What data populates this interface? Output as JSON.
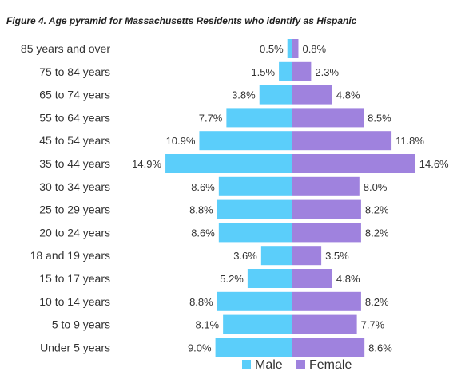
{
  "chart_data": {
    "type": "bar",
    "orientation": "horizontal-diverging",
    "title": "Figure 4. Age pyramid for Massachusetts Residents who identify as Hispanic",
    "categories": [
      "85 years and over",
      "75 to 84 years",
      "65 to 74 years",
      "55 to 64 years",
      "45 to 54 years",
      "35 to 44 years",
      "30 to 34 years",
      "25 to 29 years",
      "20 to 24 years",
      "18 and 19 years",
      "15 to 17 years",
      "10 to 14 years",
      "5 to 9 years",
      "Under 5 years"
    ],
    "series": [
      {
        "name": "Male",
        "color": "#5bcefa",
        "values": [
          0.5,
          1.5,
          3.8,
          7.7,
          10.9,
          14.9,
          8.6,
          8.8,
          8.6,
          3.6,
          5.2,
          8.8,
          8.1,
          9.0
        ],
        "labels": [
          "0.5%",
          "1.5%",
          "3.8%",
          "7.7%",
          "10.9%",
          "14.9%",
          "8.6%",
          "8.8%",
          "8.6%",
          "3.6%",
          "5.2%",
          "8.8%",
          "8.1%",
          "9.0%"
        ]
      },
      {
        "name": "Female",
        "color": "#9f82de",
        "values": [
          0.8,
          2.3,
          4.8,
          8.5,
          11.8,
          14.6,
          8.0,
          8.2,
          8.2,
          3.5,
          4.8,
          8.2,
          7.7,
          8.6
        ],
        "labels": [
          "0.8%",
          "2.3%",
          "4.8%",
          "8.5%",
          "11.8%",
          "14.6%",
          "8.0%",
          "8.2%",
          "8.2%",
          "3.5%",
          "4.8%",
          "8.2%",
          "7.7%",
          "8.6%"
        ]
      }
    ],
    "unit": "%",
    "xlim": [
      -15,
      15
    ],
    "grid": false,
    "legend_position": "bottom"
  }
}
